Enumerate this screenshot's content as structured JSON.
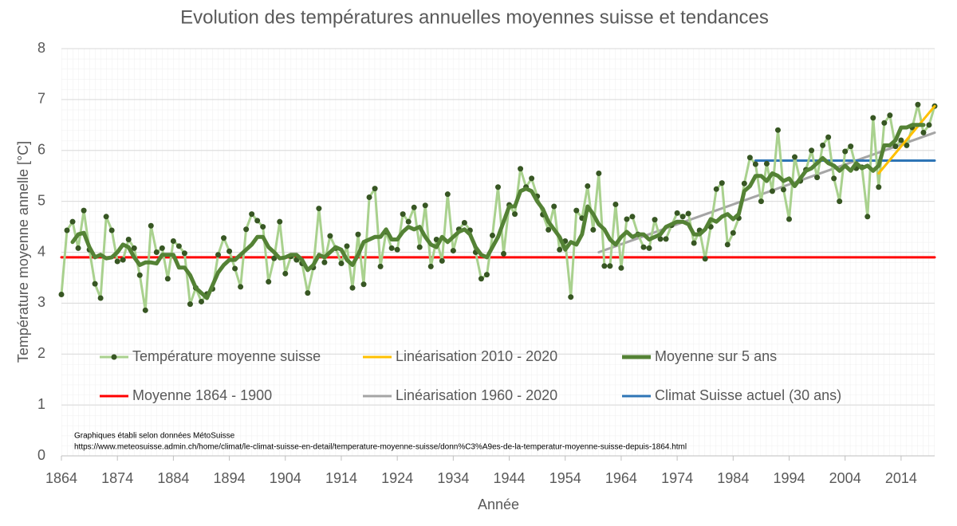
{
  "chart_data": {
    "type": "line",
    "title": "Evolution des températures annuelles moyennes suisse et tendances",
    "x_label": "Année",
    "y_label": "Température moyenne annelle [°C]",
    "annotations": [
      "Graphiques établi selon données MétoSuisse",
      "https://www.meteosuisse.admin.ch/home/climat/le-climat-suisse-en-detail/temperature-moyenne-suisse/donn%C3%A9es-de-la-temperatur-moyenne-suisse-depuis-1864.html"
    ],
    "xlim": [
      1864,
      2020
    ],
    "xticks": [
      1864,
      1874,
      1884,
      1894,
      1904,
      1914,
      1924,
      1934,
      1944,
      1954,
      1964,
      1974,
      1984,
      1994,
      2004,
      2014
    ],
    "ylim": [
      0,
      8
    ],
    "yticks": [
      0,
      1,
      2,
      3,
      4,
      5,
      6,
      7,
      8
    ],
    "grid": true,
    "x": [
      1864,
      1865,
      1866,
      1867,
      1868,
      1869,
      1870,
      1871,
      1872,
      1873,
      1874,
      1875,
      1876,
      1877,
      1878,
      1879,
      1880,
      1881,
      1882,
      1883,
      1884,
      1885,
      1886,
      1887,
      1888,
      1889,
      1890,
      1891,
      1892,
      1893,
      1894,
      1895,
      1896,
      1897,
      1898,
      1899,
      1900,
      1901,
      1902,
      1903,
      1904,
      1905,
      1906,
      1907,
      1908,
      1909,
      1910,
      1911,
      1912,
      1913,
      1914,
      1915,
      1916,
      1917,
      1918,
      1919,
      1920,
      1921,
      1922,
      1923,
      1924,
      1925,
      1926,
      1927,
      1928,
      1929,
      1930,
      1931,
      1932,
      1933,
      1934,
      1935,
      1936,
      1937,
      1938,
      1939,
      1940,
      1941,
      1942,
      1943,
      1944,
      1945,
      1946,
      1947,
      1948,
      1949,
      1950,
      1951,
      1952,
      1953,
      1954,
      1955,
      1956,
      1957,
      1958,
      1959,
      1960,
      1961,
      1962,
      1963,
      1964,
      1965,
      1966,
      1967,
      1968,
      1969,
      1970,
      1971,
      1972,
      1973,
      1974,
      1975,
      1976,
      1977,
      1978,
      1979,
      1980,
      1981,
      1982,
      1983,
      1984,
      1985,
      1986,
      1987,
      1988,
      1989,
      1990,
      1991,
      1992,
      1993,
      1994,
      1995,
      1996,
      1997,
      1998,
      1999,
      2000,
      2001,
      2002,
      2003,
      2004,
      2005,
      2006,
      2007,
      2008,
      2009,
      2010,
      2011,
      2012,
      2013,
      2014,
      2015,
      2016,
      2017,
      2018,
      2019,
      2020
    ],
    "series": [
      {
        "name": "Température moyenne suisse",
        "color": "#a9d18e",
        "marker_color": "#375623",
        "width": 3,
        "markers": true,
        "values": [
          3.17,
          4.43,
          4.6,
          4.08,
          4.82,
          4.05,
          3.38,
          3.1,
          4.7,
          4.43,
          3.82,
          3.85,
          4.25,
          4.08,
          3.55,
          2.86,
          4.52,
          4.0,
          4.08,
          3.48,
          4.22,
          4.12,
          3.98,
          2.98,
          3.3,
          3.03,
          3.18,
          3.28,
          3.95,
          4.28,
          4.02,
          3.68,
          3.32,
          4.45,
          4.75,
          4.62,
          4.5,
          3.42,
          3.88,
          4.6,
          3.58,
          3.92,
          3.85,
          3.78,
          3.2,
          3.7,
          4.86,
          3.8,
          4.32,
          4.08,
          3.78,
          4.12,
          3.3,
          4.35,
          3.37,
          5.08,
          5.25,
          3.72,
          4.4,
          4.08,
          4.05,
          4.75,
          4.6,
          4.88,
          4.1,
          4.92,
          3.72,
          4.25,
          3.83,
          5.14,
          4.03,
          4.45,
          4.58,
          4.43,
          4.0,
          3.48,
          3.56,
          4.33,
          5.28,
          3.97,
          4.93,
          4.75,
          5.64,
          5.28,
          5.45,
          5.1,
          4.74,
          4.44,
          4.9,
          4.05,
          4.22,
          3.12,
          4.82,
          4.67,
          5.3,
          4.44,
          5.55,
          3.73,
          3.73,
          4.94,
          3.69,
          4.65,
          4.7,
          4.35,
          4.1,
          4.08,
          4.64,
          4.26,
          4.26,
          4.53,
          4.77,
          4.7,
          4.76,
          4.18,
          4.43,
          3.87,
          4.5,
          5.24,
          5.36,
          4.15,
          4.38,
          4.67,
          5.35,
          5.86,
          5.73,
          5.0,
          5.74,
          5.2,
          6.4,
          5.23,
          4.65,
          5.87,
          5.4,
          5.62,
          6.0,
          5.47,
          6.1,
          6.26,
          5.45,
          5.0,
          5.98,
          6.08,
          5.65,
          5.67,
          4.7,
          6.64,
          5.28,
          6.54,
          6.69,
          6.08,
          6.2,
          6.1,
          6.45,
          6.9,
          6.35,
          6.5,
          6.87
        ]
      },
      {
        "name": "Linéarisation 2010 - 2020",
        "color": "#ffc000",
        "width": 3,
        "x": [
          2010,
          2020
        ],
        "values": [
          5.55,
          6.87
        ]
      },
      {
        "name": "Moyenne sur 5 ans",
        "color": "#548235",
        "width": 5,
        "x": [
          1866,
          1867,
          1868,
          1869,
          1870,
          1871,
          1872,
          1873,
          1874,
          1875,
          1876,
          1877,
          1878,
          1879,
          1880,
          1881,
          1882,
          1883,
          1884,
          1885,
          1886,
          1887,
          1888,
          1889,
          1890,
          1891,
          1892,
          1893,
          1894,
          1895,
          1896,
          1897,
          1898,
          1899,
          1900,
          1901,
          1902,
          1903,
          1904,
          1905,
          1906,
          1907,
          1908,
          1909,
          1910,
          1911,
          1912,
          1913,
          1914,
          1915,
          1916,
          1917,
          1918,
          1919,
          1920,
          1921,
          1922,
          1923,
          1924,
          1925,
          1926,
          1927,
          1928,
          1929,
          1930,
          1931,
          1932,
          1933,
          1934,
          1935,
          1936,
          1937,
          1938,
          1939,
          1940,
          1941,
          1942,
          1943,
          1944,
          1945,
          1946,
          1947,
          1948,
          1949,
          1950,
          1951,
          1952,
          1953,
          1954,
          1955,
          1956,
          1957,
          1958,
          1959,
          1960,
          1961,
          1962,
          1963,
          1964,
          1965,
          1966,
          1967,
          1968,
          1969,
          1970,
          1971,
          1972,
          1973,
          1974,
          1975,
          1976,
          1977,
          1978,
          1979,
          1980,
          1981,
          1982,
          1983,
          1984,
          1985,
          1986,
          1987,
          1988,
          1989,
          1990,
          1991,
          1992,
          1993,
          1994,
          1995,
          1996,
          1997,
          1998,
          1999,
          2000,
          2001,
          2002,
          2003,
          2004,
          2005,
          2006,
          2007,
          2008,
          2009,
          2010,
          2011,
          2012,
          2013,
          2014,
          2015,
          2016,
          2017,
          2018
        ],
        "values": [
          4.2,
          4.35,
          4.38,
          4.1,
          3.9,
          3.95,
          3.88,
          3.9,
          4.0,
          4.15,
          4.1,
          3.9,
          3.75,
          3.8,
          3.8,
          3.78,
          3.95,
          3.95,
          3.95,
          3.7,
          3.7,
          3.55,
          3.3,
          3.2,
          3.1,
          3.35,
          3.6,
          3.75,
          3.85,
          3.85,
          3.95,
          4.05,
          4.15,
          4.3,
          4.3,
          4.1,
          4.0,
          3.88,
          3.9,
          3.95,
          3.95,
          3.85,
          3.65,
          3.75,
          3.95,
          3.9,
          4.0,
          4.1,
          4.05,
          3.85,
          3.75,
          3.95,
          4.2,
          4.25,
          4.3,
          4.3,
          4.45,
          4.25,
          4.25,
          4.4,
          4.5,
          4.45,
          4.5,
          4.3,
          4.15,
          4.1,
          4.3,
          4.2,
          4.3,
          4.4,
          4.45,
          4.35,
          4.1,
          3.95,
          3.9,
          4.1,
          4.3,
          4.6,
          4.9,
          4.9,
          5.2,
          5.25,
          5.2,
          5.0,
          4.85,
          4.6,
          4.45,
          4.3,
          4.05,
          4.2,
          4.15,
          4.35,
          4.9,
          4.75,
          4.55,
          4.45,
          4.25,
          4.15,
          4.3,
          4.4,
          4.3,
          4.35,
          4.35,
          4.25,
          4.3,
          4.35,
          4.5,
          4.55,
          4.6,
          4.6,
          4.55,
          4.35,
          4.35,
          4.45,
          4.65,
          4.6,
          4.7,
          4.75,
          4.65,
          4.75,
          5.2,
          5.3,
          5.5,
          5.5,
          5.4,
          5.55,
          5.5,
          5.4,
          5.45,
          5.3,
          5.45,
          5.6,
          5.65,
          5.75,
          5.85,
          5.75,
          5.7,
          5.6,
          5.7,
          5.6,
          5.75,
          5.65,
          5.7,
          5.6,
          5.7,
          6.1,
          6.1,
          6.2,
          6.45,
          6.45,
          6.5,
          6.5,
          6.5
        ]
      },
      {
        "name": "Moyenne 1864 - 1900",
        "color": "#ff0000",
        "width": 3,
        "x": [
          1864,
          2020
        ],
        "values": [
          3.9,
          3.9
        ]
      },
      {
        "name": "Linéarisation 1960 - 2020",
        "color": "#a5a5a5",
        "width": 3,
        "x": [
          1960,
          2020
        ],
        "values": [
          4.0,
          6.35
        ]
      },
      {
        "name": "Climat Suisse actuel (30 ans)",
        "color": "#2e75b6",
        "width": 3,
        "x": [
          1988,
          2020
        ],
        "values": [
          5.8,
          5.8
        ]
      }
    ]
  }
}
